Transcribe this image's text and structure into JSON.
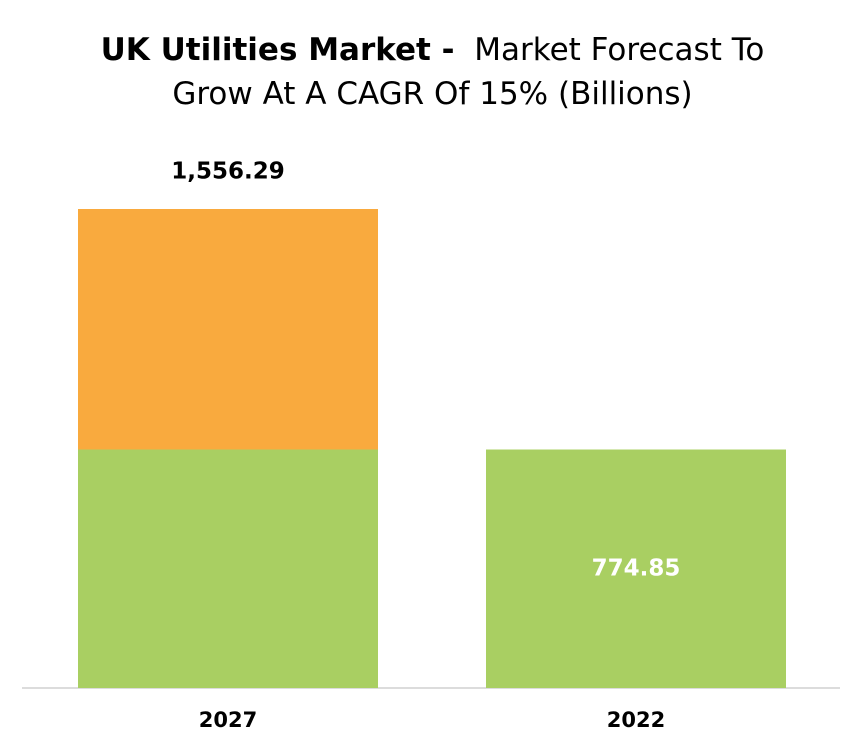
{
  "chart_data": {
    "type": "stacked-bar",
    "title": "UK Utilities Market -",
    "subtitle": "Market Forecast To Grow At A CAGR Of 15% (Billions)",
    "categories": [
      "2027",
      "2022"
    ],
    "series": [
      {
        "color": "#a9cf62",
        "values": [
          774.85,
          774.85
        ],
        "value_labels": [
          null,
          "774.85"
        ]
      },
      {
        "color": "#f9aa3e",
        "values": [
          781.44,
          null
        ]
      }
    ],
    "totals": [
      1556.29,
      null
    ],
    "total_labels": [
      "1,556.29",
      null
    ]
  }
}
